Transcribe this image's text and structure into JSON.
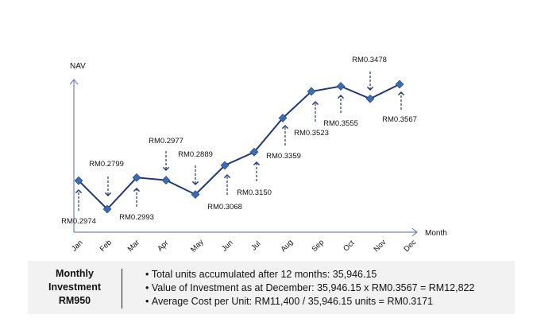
{
  "chart_data": {
    "type": "line",
    "title": "",
    "xlabel": "Month",
    "ylabel": "NAV",
    "categories": [
      "Jan",
      "Feb",
      "Mar",
      "Apr",
      "May",
      "Jun",
      "Jul",
      "Aug",
      "Sep",
      "Oct",
      "Nov",
      "Dec"
    ],
    "values": [
      0.2974,
      0.2799,
      0.2993,
      0.2977,
      0.2889,
      0.3068,
      0.315,
      0.3359,
      0.3523,
      0.3555,
      0.3478,
      0.3567
    ],
    "data_labels": [
      "RM0.2974",
      "RM0.2799",
      "RM0.2993",
      "RM0.2977",
      "RM0.2889",
      "RM0.3068",
      "RM0.3150",
      "RM0.3359",
      "RM0.3523",
      "RM0.3555",
      "RM0.3478",
      "RM0.3567"
    ],
    "grid": false,
    "legend": "none",
    "line_color": "#1f3a7a",
    "marker_color": "#3a6db5"
  },
  "summary": {
    "left_lines": [
      "Monthly",
      "Investment",
      "RM950"
    ],
    "bullets": [
      "Total units accumulated after 12 months: 35,946.15",
      "Value of Investment as at December: 35,946.15 x RM0.3567 = RM12,822",
      "Average Cost per Unit: RM11,400 / 35,946.15 units = RM0.3171"
    ]
  }
}
